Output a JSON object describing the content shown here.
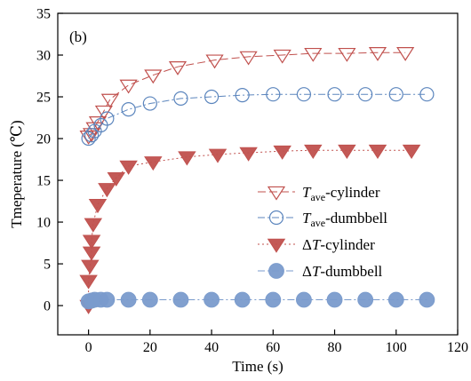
{
  "chart_data": {
    "type": "scatter",
    "panel_label": "(b)",
    "xlabel": "Time (s)",
    "ylabel": "Tmeperature (℃)",
    "xlim": [
      -10,
      120
    ],
    "ylim": [
      -3.5,
      35
    ],
    "xticks": [
      0,
      20,
      40,
      60,
      80,
      100,
      120
    ],
    "yticks": [
      0,
      5,
      10,
      15,
      20,
      25,
      30,
      35
    ],
    "grid": false,
    "legend_position": "center-right",
    "series": [
      {
        "name": "Tave-cylinder",
        "legend": {
          "pre": "",
          "italic": "T",
          "sub": "ave",
          "post": "-cylinder"
        },
        "marker": "triangle-down-open",
        "line": "dashed",
        "color": "#c0504d",
        "x": [
          0,
          1,
          2,
          3,
          5,
          7,
          13,
          21,
          29,
          41,
          52,
          63,
          73,
          84,
          94,
          103
        ],
        "y": [
          20.3,
          20.6,
          21.3,
          22.0,
          23.3,
          24.7,
          26.4,
          27.6,
          28.6,
          29.4,
          29.8,
          30.0,
          30.2,
          30.2,
          30.3,
          30.3
        ]
      },
      {
        "name": "Tave-dumbbell",
        "legend": {
          "pre": "",
          "italic": "T",
          "sub": "ave",
          "post": "-dumbbell"
        },
        "marker": "circle-open",
        "line": "dash-dot",
        "color": "#5b85bd",
        "x": [
          0,
          1,
          2,
          4,
          6,
          13,
          20,
          30,
          40,
          50,
          60,
          70,
          80,
          90,
          100,
          110
        ],
        "y": [
          20.0,
          20.4,
          20.9,
          21.6,
          22.4,
          23.5,
          24.2,
          24.8,
          25.0,
          25.2,
          25.3,
          25.3,
          25.3,
          25.3,
          25.3,
          25.3
        ]
      },
      {
        "name": "ΔT-cylinder",
        "legend": {
          "pre": "Δ",
          "italic": "T",
          "sub": "",
          "post": "-cylinder"
        },
        "marker": "triangle-down-filled",
        "line": "dotted",
        "color": "#c0504d",
        "x": [
          0,
          0,
          0.5,
          1,
          1,
          1.5,
          3,
          6,
          9,
          13,
          21,
          32,
          42,
          52,
          63,
          73,
          84,
          94,
          105
        ],
        "y": [
          0,
          3.0,
          4.8,
          6.4,
          7.8,
          9.8,
          12.1,
          14.0,
          15.3,
          16.7,
          17.2,
          17.8,
          18.1,
          18.3,
          18.5,
          18.6,
          18.6,
          18.6,
          18.6
        ]
      },
      {
        "name": "ΔT-dumbbell",
        "legend": {
          "pre": "Δ",
          "italic": "T",
          "sub": "",
          "post": "-dumbbell"
        },
        "marker": "circle-filled",
        "line": "dash-dot",
        "color": "#7a9bcc",
        "x": [
          0,
          1,
          2,
          4,
          6,
          13,
          20,
          30,
          40,
          50,
          60,
          70,
          80,
          90,
          100,
          110
        ],
        "y": [
          0.5,
          0.6,
          0.7,
          0.7,
          0.7,
          0.7,
          0.7,
          0.7,
          0.7,
          0.7,
          0.7,
          0.7,
          0.7,
          0.7,
          0.7,
          0.7
        ]
      }
    ]
  }
}
